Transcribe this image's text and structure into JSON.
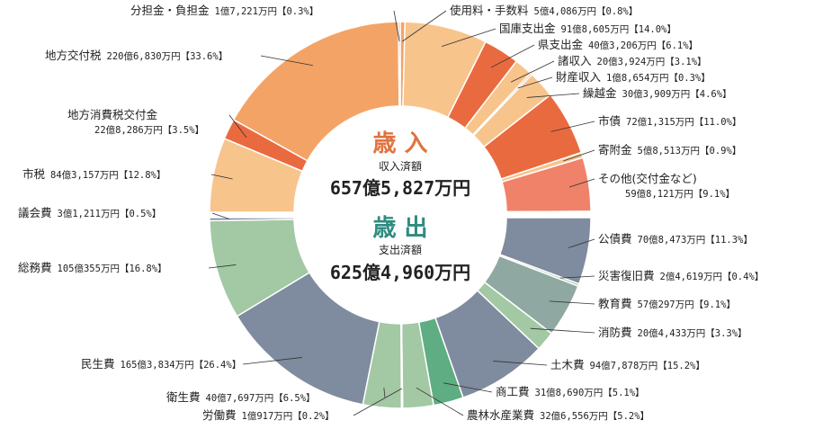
{
  "chart_data": [
    {
      "type": "pie",
      "title": "歳 入",
      "total_label": "収入済額",
      "total": "657億5,827万円",
      "title_color": "#e0733f",
      "slices": [
        {
          "name": "使用料・手数料",
          "amount": "5億4,086万円",
          "percent": 0.8,
          "color": "#f4a366"
        },
        {
          "name": "国庫支出金",
          "amount": "91億8,605万円",
          "percent": 14.0,
          "color": "#f7c48c"
        },
        {
          "name": "県支出金",
          "amount": "40億3,206万円",
          "percent": 6.1,
          "color": "#ea6a3f"
        },
        {
          "name": "諸収入",
          "amount": "20億3,924万円",
          "percent": 3.1,
          "color": "#f7c48c"
        },
        {
          "name": "財産収入",
          "amount": "1億8,654万円",
          "percent": 0.3,
          "color": "#ea7a5a"
        },
        {
          "name": "繰越金",
          "amount": "30億3,909万円",
          "percent": 4.6,
          "color": "#f7c48c"
        },
        {
          "name": "市債",
          "amount": "72億1,315万円",
          "percent": 11.0,
          "color": "#ea6a3f"
        },
        {
          "name": "寄附金",
          "amount": "5億8,513万円",
          "percent": 0.9,
          "color": "#f7c48c"
        },
        {
          "name": "その他(交付金など)",
          "amount": "59億8,121万円",
          "percent": 9.1,
          "color": "#f0826a"
        },
        {
          "name": "市税",
          "amount": "84億3,157万円",
          "percent": 12.8,
          "color": "#f7c48c"
        },
        {
          "name": "地方消費税交付金",
          "amount": "22億8,286万円",
          "percent": 3.5,
          "color": "#ea6a3f"
        },
        {
          "name": "地方交付税",
          "amount": "220億6,830万円",
          "percent": 33.6,
          "color": "#f4a366"
        },
        {
          "name": "分担金・負担金",
          "amount": "1億7,221万円",
          "percent": 0.3,
          "color": "#ea6a3f"
        }
      ]
    },
    {
      "type": "pie",
      "title": "歳 出",
      "total_label": "支出済額",
      "total": "625億4,960万円",
      "title_color": "#2e8c80",
      "slices": [
        {
          "name": "公債費",
          "amount": "70億8,473万円",
          "percent": 11.3,
          "color": "#7f8b9e"
        },
        {
          "name": "災害復旧費",
          "amount": "2億4,619万円",
          "percent": 0.4,
          "color": "#a2c8a4"
        },
        {
          "name": "教育費",
          "amount": "57億297万円",
          "percent": 9.1,
          "color": "#8fa8a2"
        },
        {
          "name": "消防費",
          "amount": "20億4,433万円",
          "percent": 3.3,
          "color": "#a2c8a4"
        },
        {
          "name": "土木費",
          "amount": "94億7,878万円",
          "percent": 15.2,
          "color": "#7f8b9e"
        },
        {
          "name": "商工費",
          "amount": "31億8,690万円",
          "percent": 5.1,
          "color": "#5fad82"
        },
        {
          "name": "農林水産業費",
          "amount": "32億6,556万円",
          "percent": 5.2,
          "color": "#a2c8a4"
        },
        {
          "name": "労働費",
          "amount": "1億917万円",
          "percent": 0.2,
          "color": "#7f8b9e"
        },
        {
          "name": "衛生費",
          "amount": "40億7,697万円",
          "percent": 6.5,
          "color": "#a2c8a4"
        },
        {
          "name": "民生費",
          "amount": "165億3,834万円",
          "percent": 26.4,
          "color": "#7f8b9e"
        },
        {
          "name": "総務費",
          "amount": "105億355万円",
          "percent": 16.8,
          "color": "#a2c8a4"
        },
        {
          "name": "議会費",
          "amount": "3億1,211万円",
          "percent": 0.5,
          "color": "#7f8b9e"
        }
      ]
    }
  ]
}
